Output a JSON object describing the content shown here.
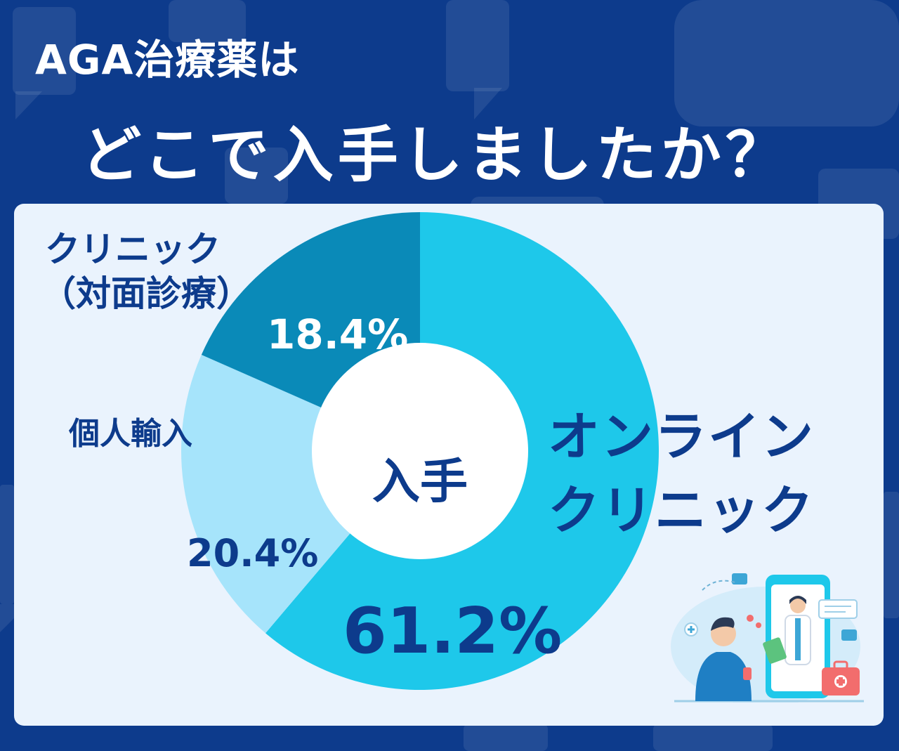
{
  "title_line1": "AGA治療薬は",
  "title_line2": "どこで入手しましたか？",
  "colors": {
    "background": "#0d3b8c",
    "panel": "#eaf3fd",
    "online": "#1ec8ea",
    "import": "#a6e4fb",
    "clinic": "#0a8ab8",
    "text": "#0d3b8c"
  },
  "chart_data": {
    "type": "pie",
    "donut": true,
    "center_label": "入手",
    "slices": [
      {
        "key": "online",
        "label_lines": [
          "オンライン",
          "クリニック"
        ],
        "value": 61.2,
        "display": "61.2%",
        "color": "#1ec8ea"
      },
      {
        "key": "import",
        "label_lines": [
          "個人輸入"
        ],
        "value": 20.4,
        "display": "20.4%",
        "color": "#a6e4fb"
      },
      {
        "key": "clinic",
        "label_lines": [
          "クリニック",
          "（対面診療）"
        ],
        "value": 18.4,
        "display": "18.4%",
        "color": "#0a8ab8"
      }
    ]
  }
}
